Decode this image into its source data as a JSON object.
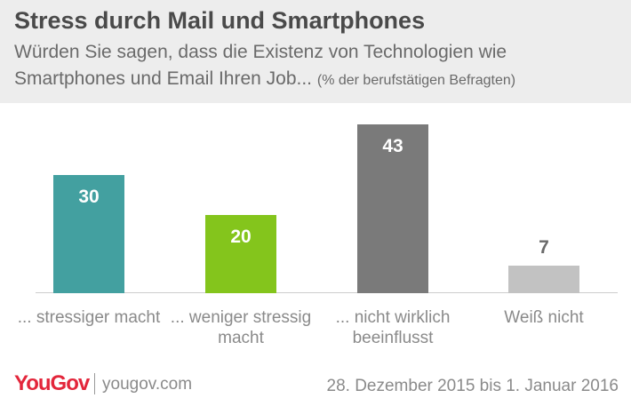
{
  "chart_data": {
    "type": "bar",
    "title": "Stress durch Mail und Smartphones",
    "subtitle": [
      "Würden Sie sagen, dass die Existenz von Technologien wie",
      "Smartphones und Email Ihren Job..."
    ],
    "subtitle_note": "(% der berufstätigen Befragten)",
    "categories": [
      "... stressiger macht",
      "... weniger stressig macht",
      "... nicht wirklich beeinflusst",
      "Weiß nicht"
    ],
    "values": [
      30,
      20,
      43,
      7
    ],
    "colors": [
      "#43a0a0",
      "#84c51c",
      "#7a7a7a",
      "#c2c2c2"
    ]
  },
  "footer": {
    "logo": "YouGov",
    "site": "yougov.com",
    "date": "28. Dezember 2015 bis 1. Januar 2016"
  }
}
